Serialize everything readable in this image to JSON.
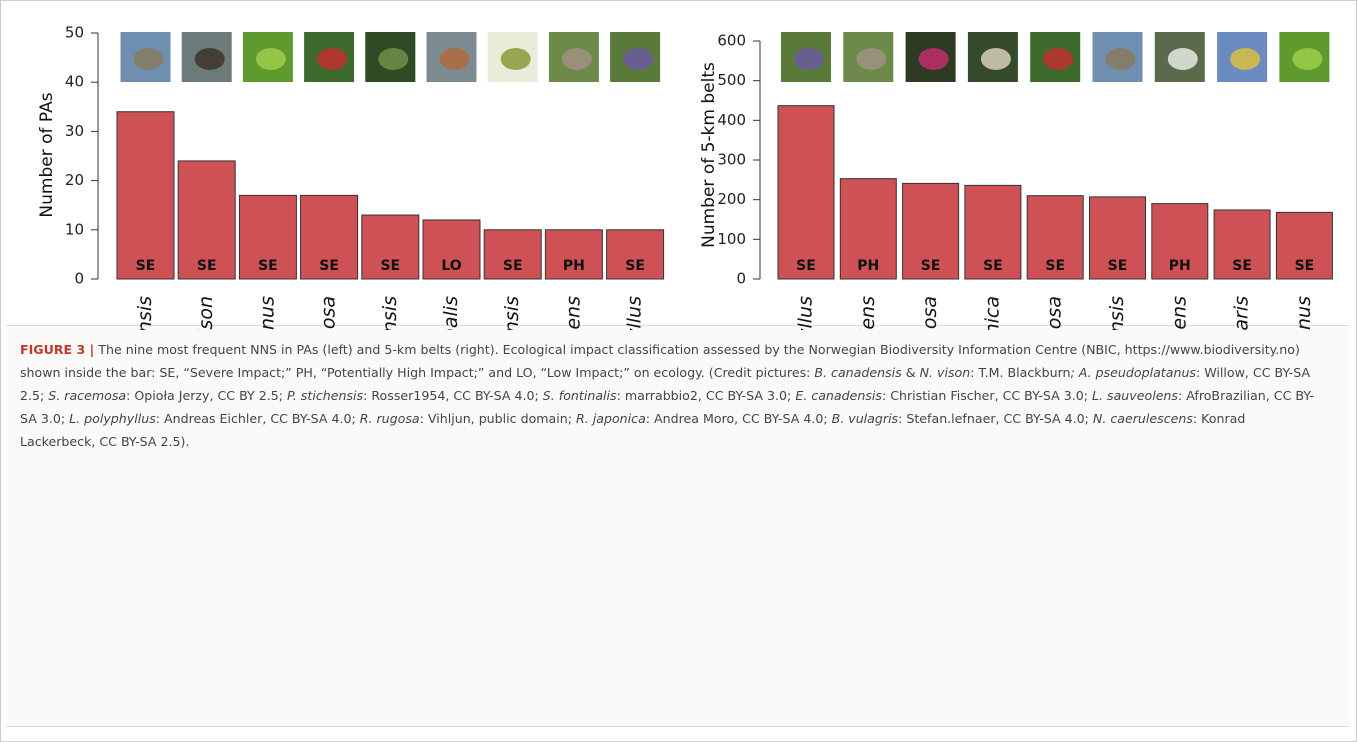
{
  "chart_data": [
    {
      "type": "bar",
      "y_label": "Number of PAs",
      "categories": [
        "Branta canadensis",
        "Neovison vison",
        "Acer pseudoplatanus",
        "Sambucus racemosa",
        "Picea stichensis",
        "Salvelinus fontinalis",
        "Elodea canadensis",
        "Lepidotheca suaveolens",
        "Lupinus polyphyllus"
      ],
      "values": [
        34,
        24,
        17,
        17,
        13,
        12,
        10,
        10,
        10
      ],
      "impact_labels": [
        "SE",
        "SE",
        "SE",
        "SE",
        "SE",
        "LO",
        "SE",
        "PH",
        "SE"
      ],
      "color": "#cd5155",
      "ylim": [
        0,
        50
      ],
      "yticks": [
        0,
        10,
        20,
        30,
        40,
        50
      ]
    },
    {
      "type": "bar",
      "y_label": "Number of 5-km belts",
      "categories": [
        "Lupinus polyphyllus",
        "Lepidotheca suaveolens",
        "Rosa rugosa",
        "Reynutria japonica",
        "Sambucus racemosa",
        "Branta canadensis",
        "Noccaea caerulescens",
        "Barbarea vulgaris",
        "Acer pseudoplatanus"
      ],
      "values": [
        437,
        253,
        241,
        236,
        210,
        207,
        190,
        174,
        168
      ],
      "impact_labels": [
        "SE",
        "PH",
        "SE",
        "SE",
        "SE",
        "SE",
        "PH",
        "SE",
        "SE"
      ],
      "color": "#cd5155",
      "ylim": [
        0,
        600
      ],
      "yticks": [
        0,
        100,
        200,
        300,
        400,
        500,
        600
      ]
    }
  ],
  "caption": {
    "parts": [
      {
        "text": "FIGURE 3 |",
        "style": "bold"
      },
      {
        "text": " The nine most frequent NNS in PAs (left) and 5-km belts (right). Ecological impact classification assessed by the Norwegian Biodiversity Information Centre (NBIC, https://www.biodiversity.no) shown inside the bar: SE, “Severe Impact;” PH, “Potentially High Impact;” and LO, “Low Impact;” on ecology. (Credit pictures: ",
        "style": "normal"
      },
      {
        "text": "B. canadensis",
        "style": "italic"
      },
      {
        "text": " & ",
        "style": "normal"
      },
      {
        "text": "N. vison",
        "style": "italic"
      },
      {
        "text": ": T.M. Blackburn",
        "style": "normal"
      },
      {
        "text": "; A. pseudoplatanus",
        "style": "italic"
      },
      {
        "text": ": Willow, CC BY-SA 2.5; ",
        "style": "normal"
      },
      {
        "text": "S. racemosa",
        "style": "italic"
      },
      {
        "text": ": Opioła Jerzy, CC BY 2.5; ",
        "style": "normal"
      },
      {
        "text": "P. stichensis",
        "style": "italic"
      },
      {
        "text": ": Rosser1954, CC BY-SA 4.0; ",
        "style": "normal"
      },
      {
        "text": "S. fontinalis",
        "style": "italic"
      },
      {
        "text": ": marrabbio2, CC BY-SA 3.0; ",
        "style": "normal"
      },
      {
        "text": "E. canadensis",
        "style": "italic"
      },
      {
        "text": ": Christian Fischer, CC BY-SA 3.0; ",
        "style": "normal"
      },
      {
        "text": "L. sauveolens",
        "style": "italic"
      },
      {
        "text": ": AfroBrazilian, CC BY-SA 3.0; ",
        "style": "normal"
      },
      {
        "text": "L. polyphyllus",
        "style": "italic"
      },
      {
        "text": ": Andreas Eichler, CC BY-SA 4.0; ",
        "style": "normal"
      },
      {
        "text": "R. rugosa",
        "style": "italic"
      },
      {
        "text": ": Vihljun, public domain; ",
        "style": "normal"
      },
      {
        "text": "R. japonica",
        "style": "italic"
      },
      {
        "text": ": Andrea Moro, CC BY-SA 4.0; ",
        "style": "normal"
      },
      {
        "text": "B. vulagris",
        "style": "italic"
      },
      {
        "text": ": Stefan.lefnaer, CC BY-SA 4.0; ",
        "style": "normal"
      },
      {
        "text": "N. caerulescens",
        "style": "italic"
      },
      {
        "text": ": Konrad Lackerbeck, CC BY-SA 2.5).",
        "style": "normal"
      }
    ]
  }
}
